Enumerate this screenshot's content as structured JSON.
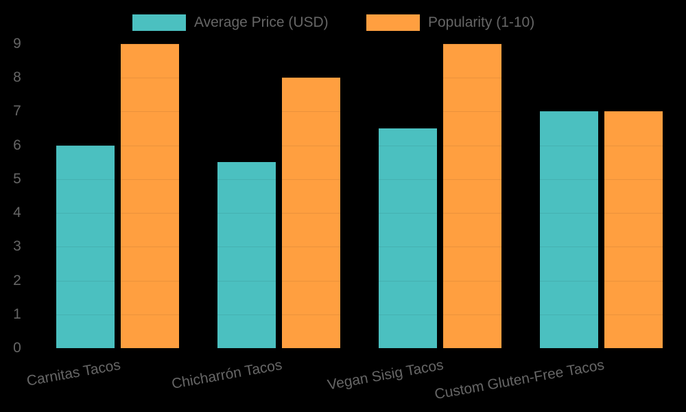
{
  "chart_data": {
    "type": "bar",
    "title": "",
    "xlabel": "",
    "ylabel": "",
    "categories": [
      "Carnitas Tacos",
      "Chicharrón Tacos",
      "Vegan Sisig Tacos",
      "Custom Gluten-Free Tacos"
    ],
    "series": [
      {
        "name": "Average Price (USD)",
        "color": "#4BC0C0",
        "values": [
          6,
          5.5,
          6.5,
          7
        ]
      },
      {
        "name": "Popularity (1-10)",
        "color": "#FF9F40",
        "values": [
          9,
          8,
          9,
          7
        ]
      }
    ],
    "ylim": [
      0,
      9
    ],
    "yticks": [
      "0",
      "1",
      "2",
      "3",
      "4",
      "5",
      "6",
      "7",
      "8",
      "9"
    ],
    "grid": true,
    "legend_position": "top"
  },
  "legend": {
    "items": [
      {
        "label": "Average Price (USD)",
        "color": "#4BC0C0"
      },
      {
        "label": "Popularity (1-10)",
        "color": "#FF9F40"
      }
    ]
  }
}
